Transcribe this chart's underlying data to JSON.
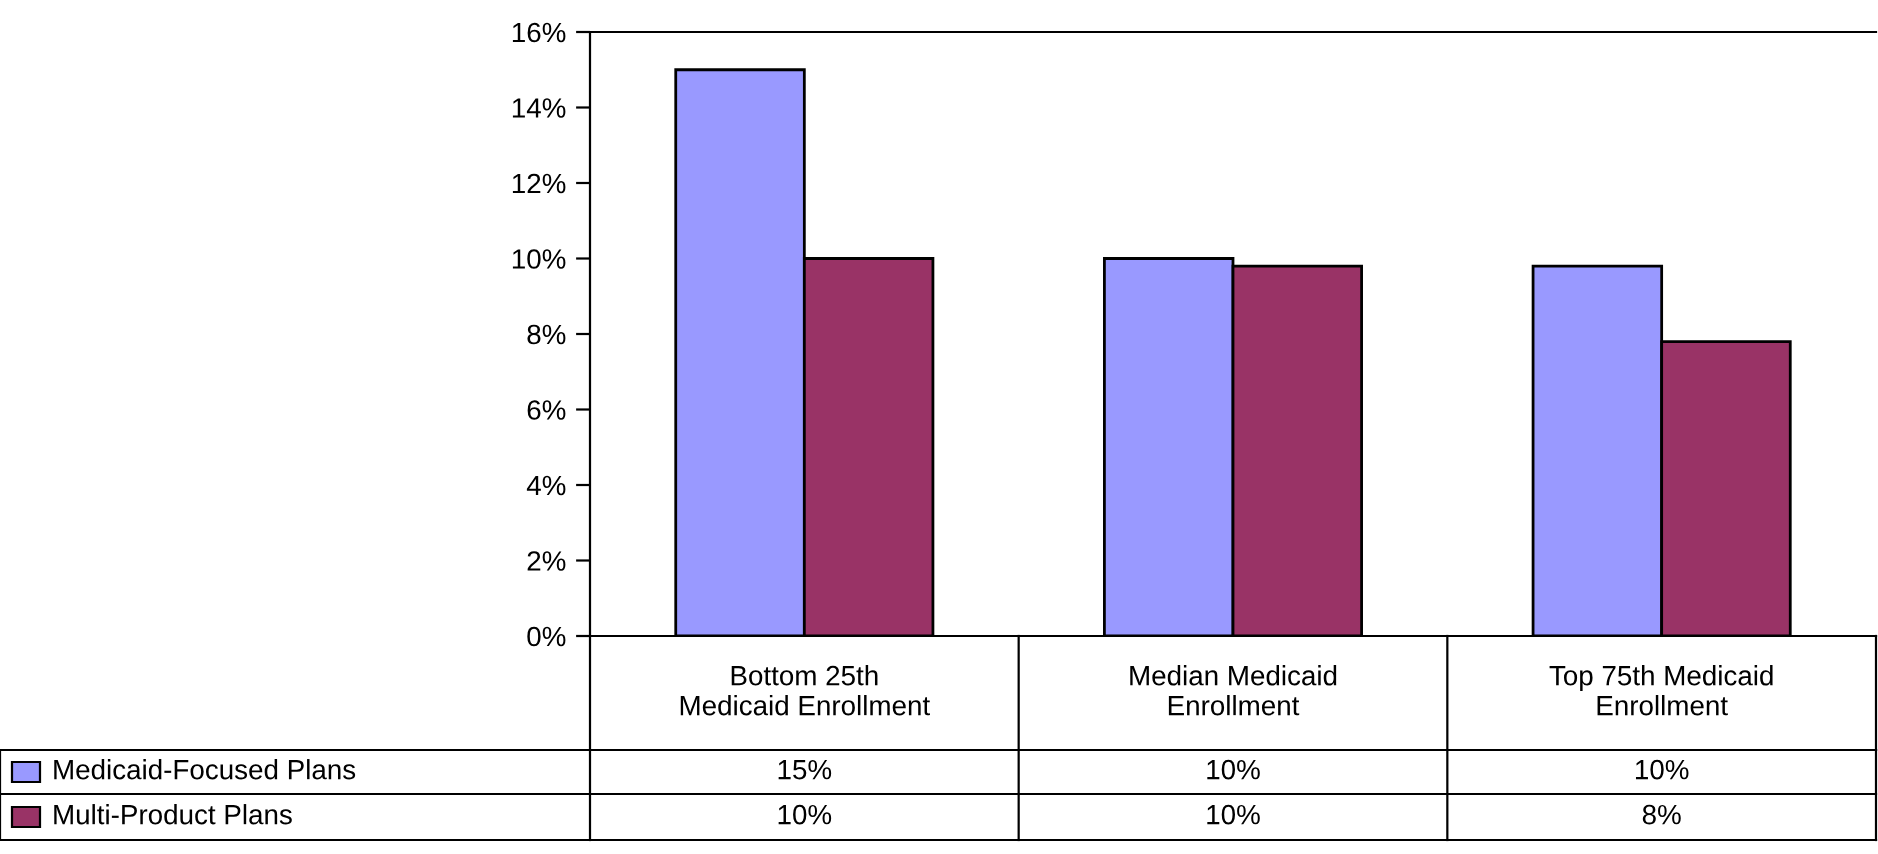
{
  "chart_data": {
    "type": "bar",
    "categories": [
      "Bottom 25th\nMedicaid Enrollment",
      "Median Medicaid\nEnrollment",
      "Top 75th Medicaid\nEnrollment"
    ],
    "series": [
      {
        "name": "Medicaid-Focused Plans",
        "color": "#9999ff",
        "values": [
          15.0,
          10.0,
          9.8
        ],
        "value_labels": [
          "15%",
          "10%",
          "10%"
        ]
      },
      {
        "name": "Multi-Product Plans",
        "color": "#993366",
        "values": [
          10.0,
          9.8,
          7.8
        ],
        "value_labels": [
          "10%",
          "10%",
          "8%"
        ]
      }
    ],
    "ylim": [
      0,
      16
    ],
    "yticks": [
      {
        "value": 0,
        "label": "0%"
      },
      {
        "value": 2,
        "label": "2%"
      },
      {
        "value": 4,
        "label": "4%"
      },
      {
        "value": 6,
        "label": "6%"
      },
      {
        "value": 8,
        "label": "8%"
      },
      {
        "value": 10,
        "label": "10%"
      },
      {
        "value": 12,
        "label": "12%"
      },
      {
        "value": 14,
        "label": "14%"
      },
      {
        "value": 16,
        "label": "16%"
      }
    ],
    "grid": false,
    "legend": "bottom left"
  }
}
